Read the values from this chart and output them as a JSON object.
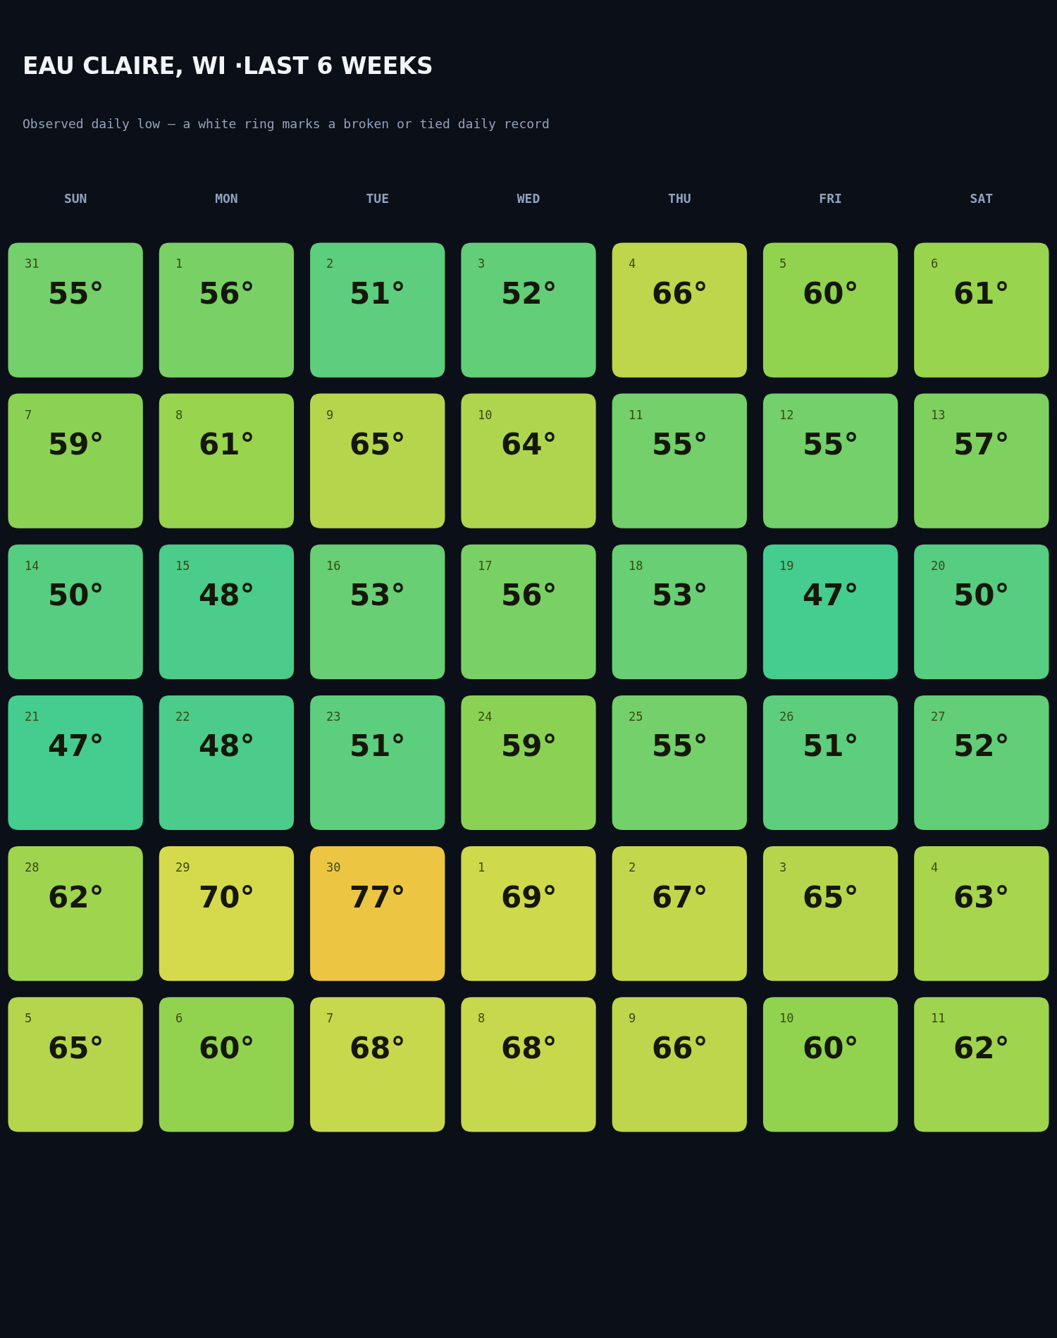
{
  "chart_data": {
    "type": "heatmap",
    "title": "EAU CLAIRE, WI ·LAST 6 WEEKS",
    "subtitle": "Observed daily low — a white ring marks a broken or tied daily record",
    "categories": [
      "SUN",
      "MON",
      "TUE",
      "WED",
      "THU",
      "FRI",
      "SAT"
    ],
    "y_categories": [
      null,
      null,
      null,
      null,
      null,
      null
    ],
    "cells": [
      [
        55,
        56,
        51,
        52,
        66,
        60,
        61
      ],
      [
        59,
        61,
        65,
        64,
        55,
        55,
        57
      ],
      [
        50,
        48,
        53,
        56,
        53,
        47,
        50
      ],
      [
        47,
        48,
        51,
        59,
        55,
        51,
        52
      ],
      [
        62,
        70,
        77,
        69,
        67,
        65,
        63
      ],
      [
        65,
        60,
        68,
        68,
        66,
        60,
        62
      ]
    ],
    "cell_labels": [
      [
        "55°",
        "56°",
        "51°",
        "52°",
        "66°",
        "60°",
        "61°"
      ],
      [
        "59°",
        "61°",
        "65°",
        "64°",
        "55°",
        "55°",
        "57°"
      ],
      [
        "50°",
        "48°",
        "53°",
        "56°",
        "53°",
        "47°",
        "50°"
      ],
      [
        "47°",
        "48°",
        "51°",
        "59°",
        "55°",
        "51°",
        "52°"
      ],
      [
        "62°",
        "70°",
        "77°",
        "69°",
        "67°",
        "65°",
        "63°"
      ],
      [
        "65°",
        "60°",
        "68°",
        "68°",
        "66°",
        "60°",
        "62°"
      ]
    ],
    "annotations": [
      "31",
      "1",
      "2",
      "3",
      "4",
      "5",
      "6",
      "7",
      "8",
      "9",
      "10",
      "11",
      "12",
      "13",
      "14",
      "15",
      "16",
      "17",
      "18",
      "19",
      "20",
      "21",
      "22",
      "23",
      "24",
      "25",
      "26",
      "27",
      "28",
      "29",
      "30",
      "1",
      "2",
      "3",
      "4",
      "5",
      "6",
      "7",
      "8",
      "9",
      "10",
      "11"
    ]
  }
}
